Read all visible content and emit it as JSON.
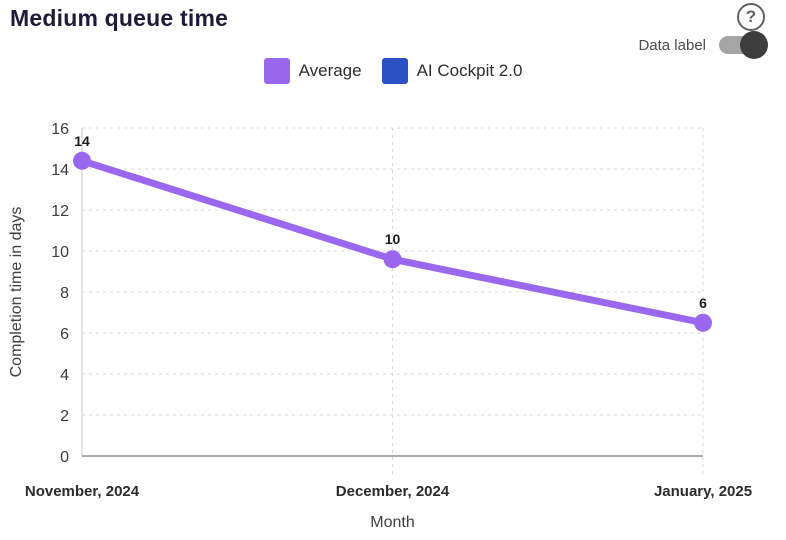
{
  "header": {
    "title": "Medium queue time",
    "help_icon": "?",
    "data_label_toggle": {
      "label": "Data label",
      "state": "on"
    }
  },
  "legend": {
    "items": [
      {
        "label": "Average",
        "color": "#9A68EF"
      },
      {
        "label": "AI Cockpit 2.0",
        "color": "#2B52C4"
      }
    ]
  },
  "chart_data": {
    "type": "line",
    "title": "Medium queue time",
    "xlabel": "Month",
    "ylabel": "Completion time in days",
    "categories": [
      "November, 2024",
      "December, 2024",
      "January, 2025"
    ],
    "series": [
      {
        "name": "Average",
        "color": "#9A68EF",
        "values": [
          14.4,
          9.6,
          6.5
        ],
        "data_labels": [
          "14",
          "10",
          "6"
        ]
      },
      {
        "name": "AI Cockpit 2.0",
        "color": "#2B52C4",
        "values": [],
        "data_labels": []
      }
    ],
    "ylim": [
      0,
      16
    ],
    "yticks": [
      0,
      2,
      4,
      6,
      8,
      10,
      12,
      14,
      16
    ],
    "grid": "dashed",
    "legend_position": "top",
    "data_labels_visible": true
  }
}
